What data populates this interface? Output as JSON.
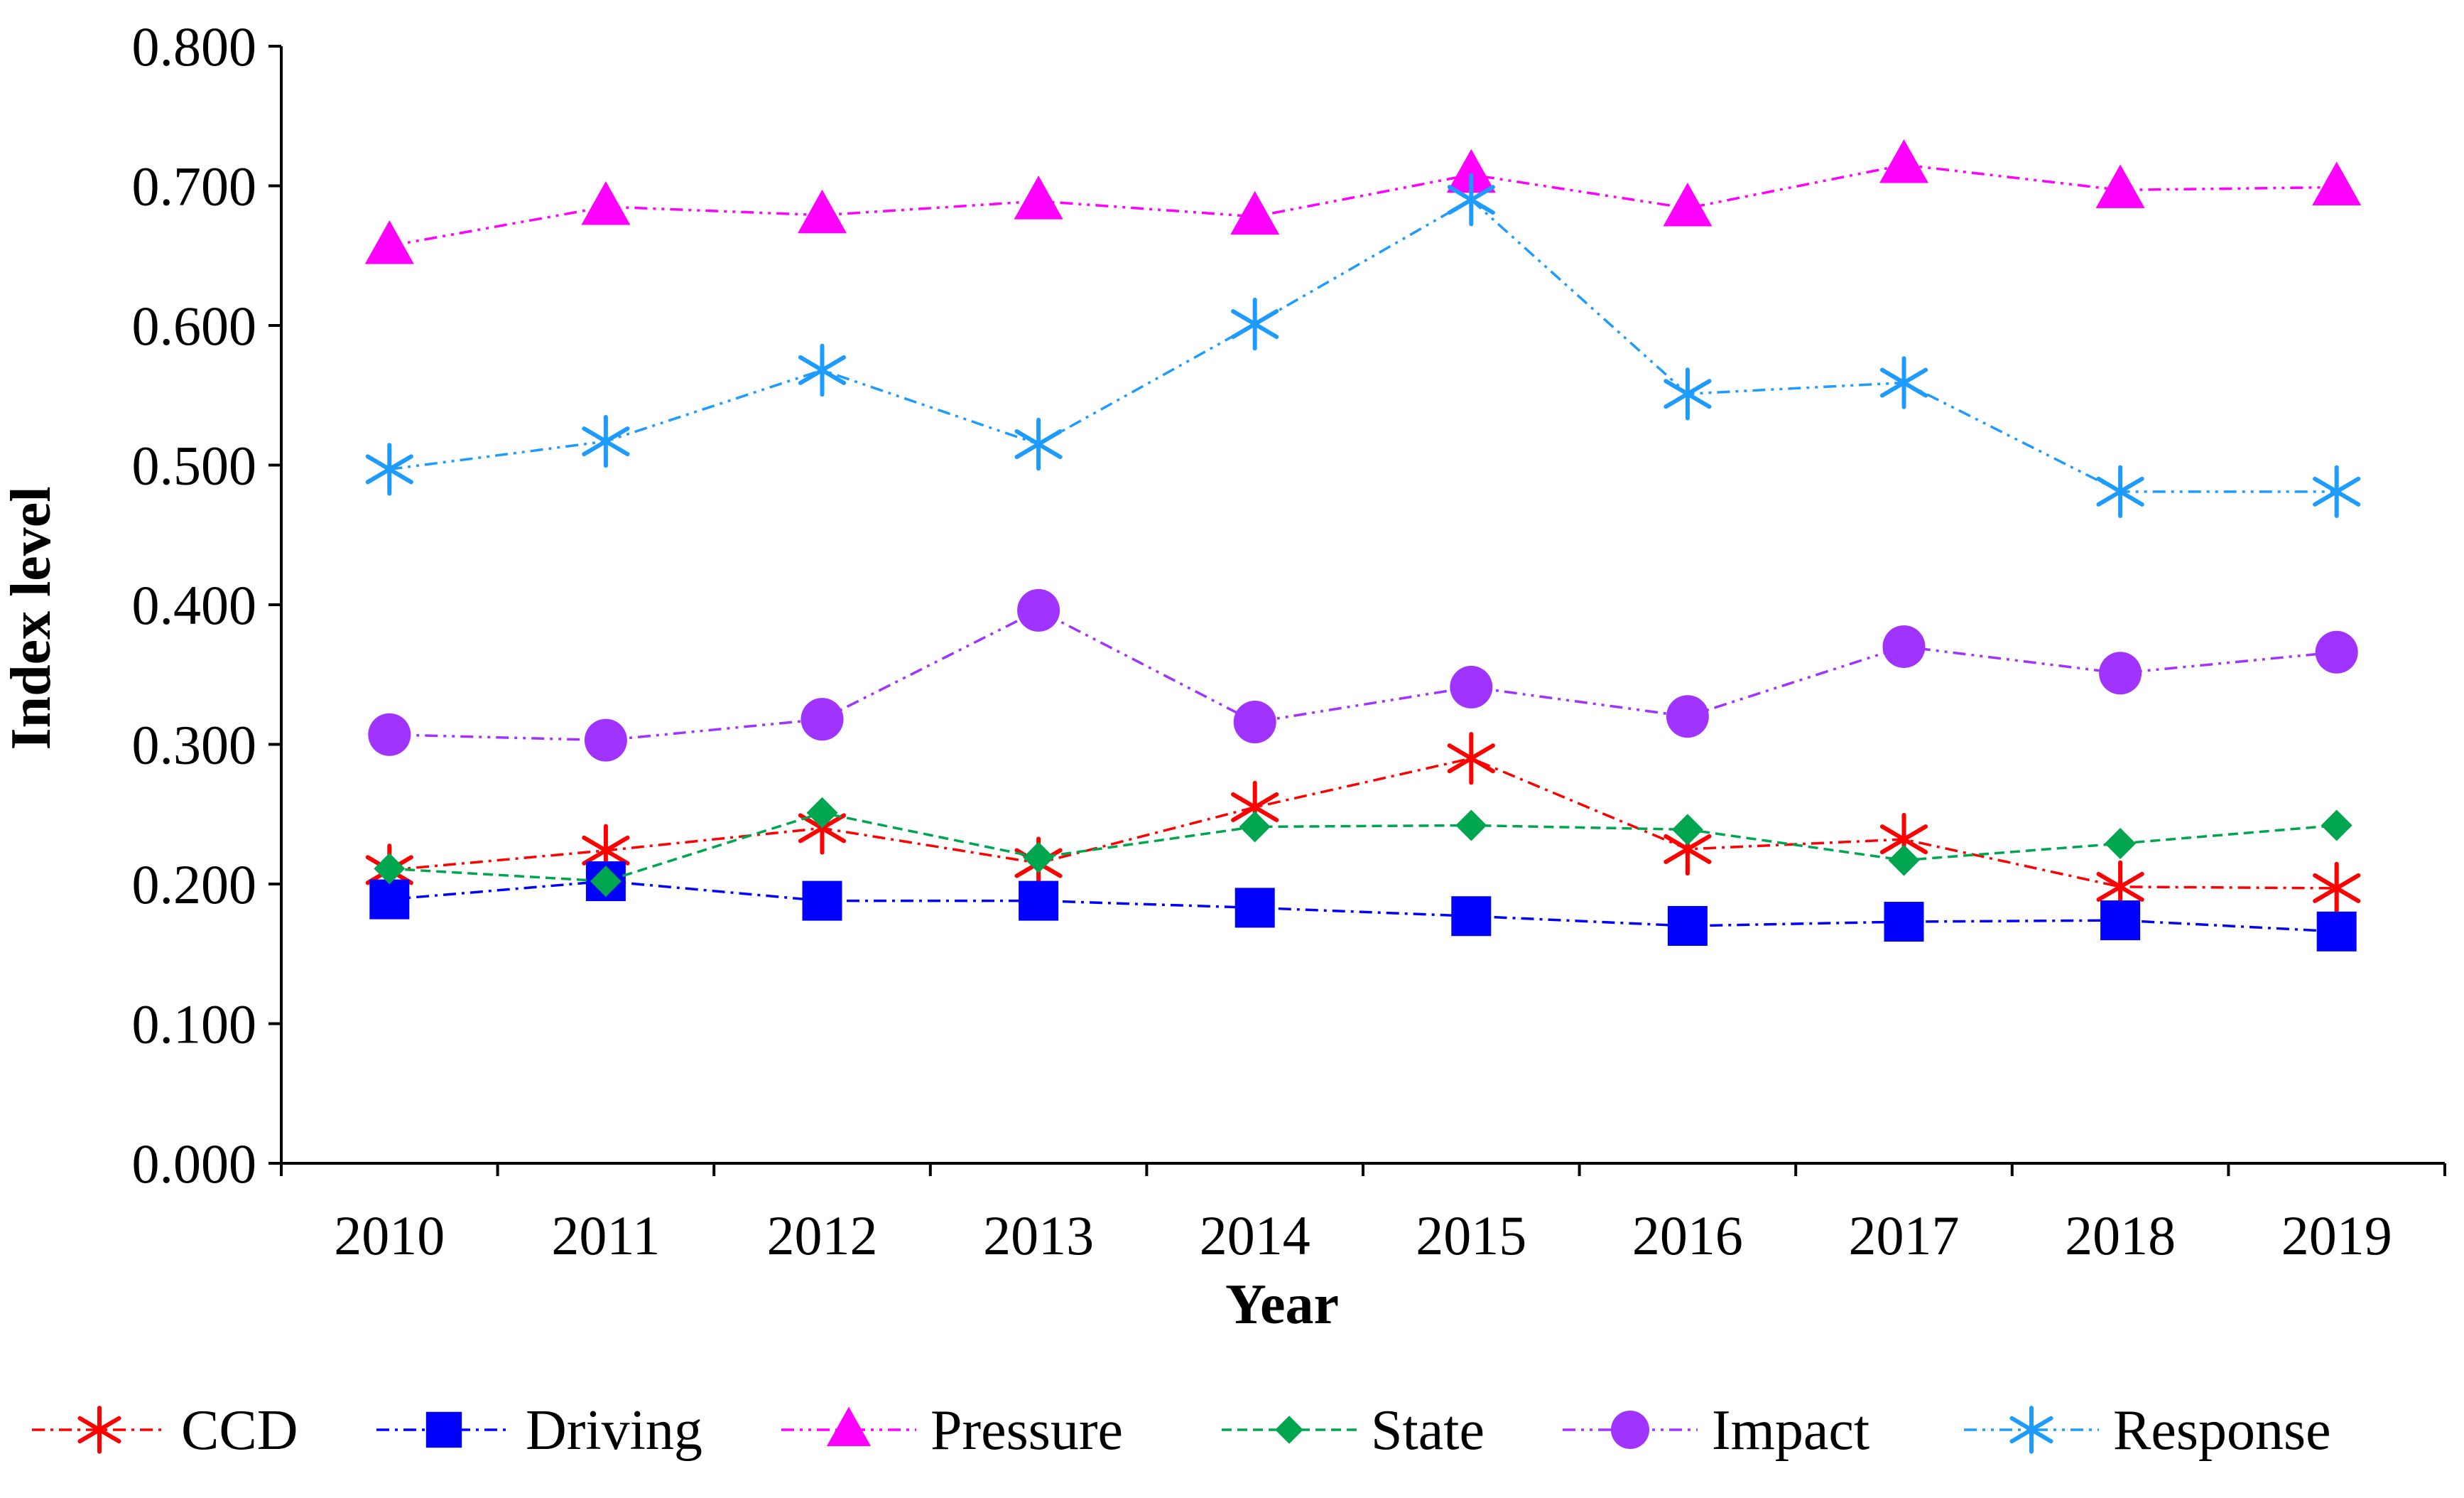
{
  "chart_data": {
    "type": "line",
    "title": "",
    "xlabel": "Year",
    "ylabel": "Index level",
    "ylim": [
      0,
      0.8
    ],
    "y_ticks": [
      "0.000",
      "0.100",
      "0.200",
      "0.300",
      "0.400",
      "0.500",
      "0.600",
      "0.700",
      "0.800"
    ],
    "categories": [
      "2010",
      "2011",
      "2012",
      "2013",
      "2014",
      "2015",
      "2016",
      "2017",
      "2018",
      "2019"
    ],
    "grid": false,
    "legend_position": "bottom",
    "series": [
      {
        "name": "CCD",
        "color": "#ff0000",
        "marker": "asterisk",
        "line": "dash-dot",
        "values": [
          0.21,
          0.224,
          0.24,
          0.215,
          0.255,
          0.29,
          0.225,
          0.232,
          0.198,
          0.197
        ]
      },
      {
        "name": "Driving",
        "color": "#0000ff",
        "marker": "square",
        "line": "dash-dot",
        "values": [
          0.189,
          0.202,
          0.188,
          0.188,
          0.183,
          0.177,
          0.17,
          0.173,
          0.174,
          0.166
        ]
      },
      {
        "name": "Pressure",
        "color": "#ff00ff",
        "marker": "triangle",
        "line": "dash-dot-dot",
        "values": [
          0.657,
          0.685,
          0.679,
          0.689,
          0.678,
          0.708,
          0.684,
          0.715,
          0.697,
          0.699
        ]
      },
      {
        "name": "State",
        "color": "#00a550",
        "marker": "diamond",
        "line": "dashed",
        "values": [
          0.211,
          0.202,
          0.251,
          0.219,
          0.241,
          0.242,
          0.239,
          0.217,
          0.229,
          0.242
        ]
      },
      {
        "name": "Impact",
        "color": "#a033ff",
        "marker": "circle",
        "line": "dash-dot-dot",
        "values": [
          0.307,
          0.303,
          0.318,
          0.396,
          0.316,
          0.341,
          0.32,
          0.37,
          0.351,
          0.366
        ]
      },
      {
        "name": "Response",
        "color": "#1e9bff",
        "marker": "asterisk",
        "line": "dash-dot-dot",
        "values": [
          0.497,
          0.517,
          0.568,
          0.515,
          0.601,
          0.69,
          0.551,
          0.559,
          0.481,
          0.481
        ]
      }
    ]
  }
}
